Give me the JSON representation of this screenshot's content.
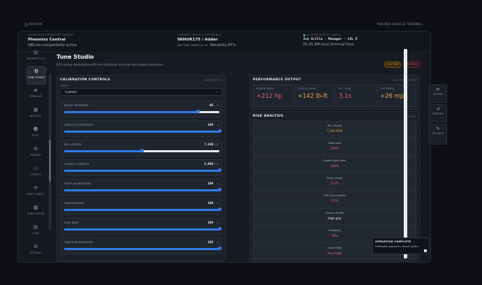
{
  "topbar": {
    "back_label": "RETURN",
    "right_label": "PHEONIX VEHICLE TERMINAL"
  },
  "infobar": {
    "org": {
      "label": "WORKSHOP OPERATING LEDGER",
      "name": "Pheonixx Central",
      "sub": "QBCore compatibility active"
    },
    "vehicle": {
      "label": "CURRENT VEHICLE REFERENCE",
      "name": "06HUR175 / Adder",
      "vin": "VIN PAMS-06HUR175-IE",
      "reliability": "Reliability 87%"
    },
    "auth": {
      "label": "AUTHORIZATION STATUS",
      "user": "Ice Grilla · Manager · LVL 6",
      "time": "01:45 AM local terminal time"
    }
  },
  "sidebar": {
    "items": [
      {
        "label": "DIAGNOSTI CS",
        "icon": "diagnostics-icon"
      },
      {
        "label": "TUNE STUDIO",
        "icon": "tune-icon"
      },
      {
        "label": "SPRAYLAB",
        "icon": "spray-icon"
      },
      {
        "label": "INVOICES",
        "icon": "invoice-icon"
      },
      {
        "label": "STAFF",
        "icon": "staff-icon"
      },
      {
        "label": "FINANCE",
        "icon": "finance-icon"
      },
      {
        "label": "STASHES",
        "icon": "stash-icon"
      },
      {
        "label": "SHOP CONFIG",
        "icon": "config-icon"
      },
      {
        "label": "ZONE EDITOR",
        "icon": "zone-icon"
      },
      {
        "label": "LOGS",
        "icon": "logs-icon"
      },
      {
        "label": "SETTINGS",
        "icon": "settings-icon"
      }
    ]
  },
  "studio": {
    "title": "Tune Studio",
    "subtitle": "ECU remap workstation with live calibration and real-time output simulation.",
    "pill_custom": "CUSTOM",
    "pill_critical": "CRITICAL"
  },
  "calibration": {
    "header": "CALIBRATION CONTROLS",
    "header_right": "SAFE INPUTS",
    "preset_label": "PRESET",
    "preset_value": "Custom",
    "sliders": [
      {
        "name": "BOOST PRESSURE",
        "value": "86",
        "unit": "%",
        "fraction": 0.86
      },
      {
        "name": "THROTTLE RESPONSE",
        "value": "100",
        "unit": "%",
        "fraction": 1.0
      },
      {
        "name": "REV LIMITER",
        "value": "7,100",
        "unit": "RPM",
        "fraction": 0.5
      },
      {
        "name": "LAUNCH CONTROL",
        "value": "5,860",
        "unit": "RPM",
        "fraction": 1.0
      },
      {
        "name": "SHIFT AGGRESSION",
        "value": "100",
        "unit": "%",
        "fraction": 1.0
      },
      {
        "name": "IGNITION BIAS",
        "value": "100",
        "unit": "%",
        "fraction": 1.0
      },
      {
        "name": "FUEL BIAS",
        "value": "100",
        "unit": "%",
        "fraction": 1.0
      },
      {
        "name": "TRACTION BEHAVIOR",
        "value": "100",
        "unit": "%",
        "fraction": 1.0
      }
    ]
  },
  "performance": {
    "header": "PERFORMANCE OUTPUT",
    "header_right": "LIVE PROJECTION",
    "metrics": [
      {
        "label": "POWER GAIN",
        "value": "+212 hp",
        "color": "#e06565"
      },
      {
        "label": "TORQUE GAIN",
        "value": "+142 lb-ft",
        "color": "#e9a347"
      },
      {
        "label": "EST. 0-60",
        "value": "3.1s",
        "color": "#e06565"
      },
      {
        "label": "TOP SPEED",
        "value": "+26 mph",
        "color": "#e9a347"
      }
    ]
  },
  "risk": {
    "header": "RISK ANALYSIS",
    "header_right": "CRITICAL",
    "rows": [
      {
        "label": "Rev Ceiling",
        "value": "7,100 RPM",
        "tone": "amber"
      },
      {
        "label": "Heat Load",
        "value": "100%",
        "tone": "red"
      },
      {
        "label": "Engine Wear Rate",
        "value": "288%",
        "tone": "red"
      },
      {
        "label": "Trans. Stress",
        "value": "123%",
        "tone": "red"
      },
      {
        "label": "Fuel Consumption",
        "value": "215%",
        "tone": "red"
      },
      {
        "label": "Traction Profile",
        "value": "High grip",
        "tone": "white"
      },
      {
        "label": "Reliability",
        "value": "78%",
        "tone": "red"
      },
      {
        "label": "Failure Risk",
        "value": "Very High",
        "tone": "red"
      }
    ]
  },
  "right_panel": {
    "buttons": [
      {
        "label": "REFRESH",
        "icon": "refresh-icon"
      },
      {
        "label": "RESTORE",
        "icon": "restore-icon"
      },
      {
        "label": "ADD NOTE",
        "icon": "note-icon"
      }
    ]
  },
  "toast": {
    "title": "OPERATION COMPLETE",
    "message": "Calibration applied to vehicle profile."
  }
}
